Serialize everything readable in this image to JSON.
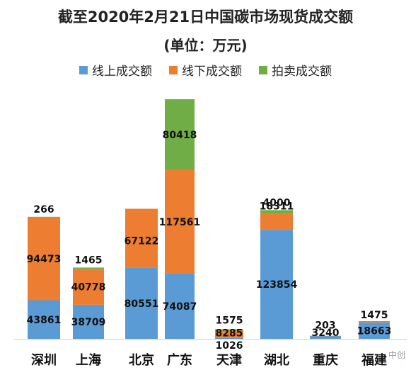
{
  "chart_data": {
    "type": "bar",
    "stacked": true,
    "title": "截至2020年2月21日中国碳市场现货成交额",
    "subtitle": "(单位：万元)",
    "categories": [
      "深圳",
      "上海",
      "北京",
      "广东",
      "天津",
      "湖北",
      "重庆",
      "福建"
    ],
    "series": [
      {
        "name": "线上成交额",
        "color": "#5b9bd5",
        "values": [
          43861,
          38709,
          80551,
          74087,
          1026,
          123854,
          3240,
          18663
        ]
      },
      {
        "name": "线下成交额",
        "color": "#ed7d31",
        "values": [
          94473,
          40778,
          67122,
          117561,
          8285,
          18311,
          203,
          1475
        ]
      },
      {
        "name": "拍卖成交额",
        "color": "#70ad47",
        "values": [
          266,
          1465,
          0,
          80418,
          1575,
          4000,
          0,
          0
        ]
      }
    ],
    "data_labels": [
      [
        "43861",
        "94473",
        "266"
      ],
      [
        "38709",
        "40778",
        "1465"
      ],
      [
        "80551",
        "67122",
        ""
      ],
      [
        "74087",
        "117561",
        "80418"
      ],
      [
        "1026",
        "8285",
        "1575"
      ],
      [
        "123854",
        "18311",
        "4000"
      ],
      [
        "3240",
        "203",
        ""
      ],
      [
        "18663",
        "1475",
        ""
      ]
    ],
    "legend_position": "top",
    "grid": false
  },
  "watermark": "中创"
}
